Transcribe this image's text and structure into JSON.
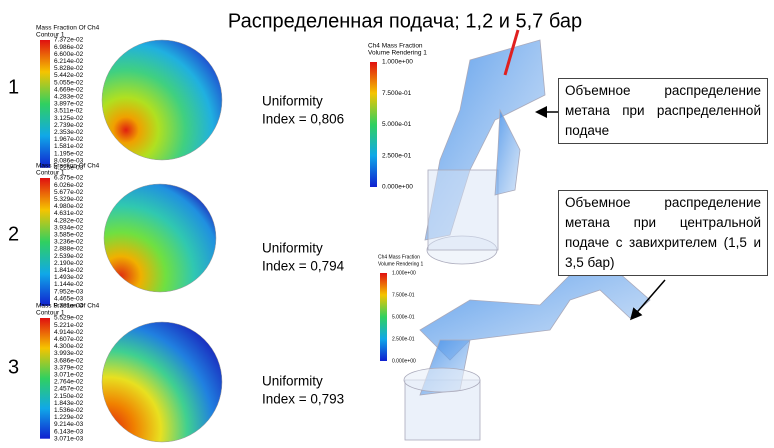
{
  "header": {
    "title": "Распределенная подача; 1,2 и 5,7 бар"
  },
  "rows": [
    {
      "number": "1",
      "legend_title": "Mass Fraction Of Ch4",
      "legend_subtitle": "Contour 1",
      "legend_labels": [
        "7.372e-02",
        "6.986e-02",
        "6.600e-02",
        "6.214e-02",
        "5.828e-02",
        "5.442e-02",
        "5.055e-02",
        "4.669e-02",
        "4.283e-02",
        "3.897e-02",
        "3.511e-02",
        "3.125e-02",
        "2.739e-02",
        "2.353e-02",
        "1.967e-02",
        "1.581e-02",
        "1.195e-02",
        "8.086e-03",
        "4.225e-03"
      ],
      "uniformity_label": "Uniformity",
      "uniformity_index": "Index = 0,806"
    },
    {
      "number": "2",
      "legend_title": "Mass Fraction Of Ch4",
      "legend_subtitle": "Contour 1",
      "legend_labels": [
        "6.375e-02",
        "6.026e-02",
        "5.677e-02",
        "5.329e-02",
        "4.980e-02",
        "4.631e-02",
        "4.282e-02",
        "3.934e-02",
        "3.585e-02",
        "3.236e-02",
        "2.888e-02",
        "2.539e-02",
        "2.190e-02",
        "1.841e-02",
        "1.493e-02",
        "1.144e-02",
        "7.952e-03",
        "4.465e-03",
        "9.781e-04"
      ],
      "uniformity_label": "Uniformity",
      "uniformity_index": "Index = 0,794"
    },
    {
      "number": "3",
      "legend_title": "Mass Fraction Of Ch4",
      "legend_subtitle": "Contour 1",
      "legend_labels": [
        "5.529e-02",
        "5.221e-02",
        "4.914e-02",
        "4.607e-02",
        "4.300e-02",
        "3.993e-02",
        "3.686e-02",
        "3.379e-02",
        "3.071e-02",
        "2.764e-02",
        "2.457e-02",
        "2.150e-02",
        "1.843e-02",
        "1.536e-02",
        "1.229e-02",
        "9.214e-03",
        "6.143e-03",
        "3.071e-03"
      ],
      "uniformity_label": "Uniformity",
      "uniformity_index": "Index = 0,793"
    }
  ],
  "renders": [
    {
      "title": "Ch4 Mass Fraction",
      "subtitle": "Volume Rendering 1",
      "labels": [
        "1.000e+00",
        "7.500e-01",
        "5.000e-01",
        "2.500e-01",
        "0.000e+00"
      ]
    },
    {
      "title": "Ch4 Mass Fraction",
      "subtitle": "Volume Rendering 1",
      "labels": [
        "1.000e+00",
        "7.500e-01",
        "5.000e-01",
        "2.500e-01",
        "0.000e+00"
      ]
    }
  ],
  "callouts": [
    {
      "text": "Объемное распределение метана при распределенной подаче"
    },
    {
      "text": "Объемное распределение метана при центральной подаче с завихрителем (1,5 и 3,5 бар)"
    }
  ]
}
